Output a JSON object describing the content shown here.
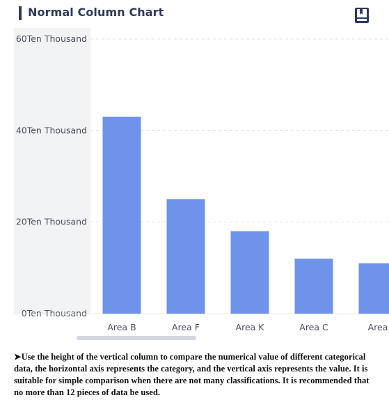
{
  "header": {
    "title": "Normal Column Chart",
    "icon": "book-icon"
  },
  "chart_data": {
    "type": "bar",
    "categories": [
      "Area B",
      "Area F",
      "Area K",
      "Area C",
      "Area"
    ],
    "values": [
      43,
      25,
      18,
      12,
      11
    ],
    "ylim": [
      0,
      60
    ],
    "yticks": [
      0,
      20,
      40,
      60
    ],
    "ytick_labels": [
      "0Ten Thousand",
      "20Ten Thousand",
      "40Ten Thousand",
      "60Ten Thousand"
    ],
    "title": "",
    "xlabel": "",
    "ylabel": "",
    "grid": true,
    "bar_color": "#6f93ea"
  },
  "description": {
    "bullet": "➤",
    "text": "Use the height of the vertical column to compare the numerical value of different categorical data, the horizontal axis represents the category, and the vertical axis represents the value. It is suitable for simple comparison when there are not many classifications. It is recommended that no more than 12 pieces of data be used."
  }
}
